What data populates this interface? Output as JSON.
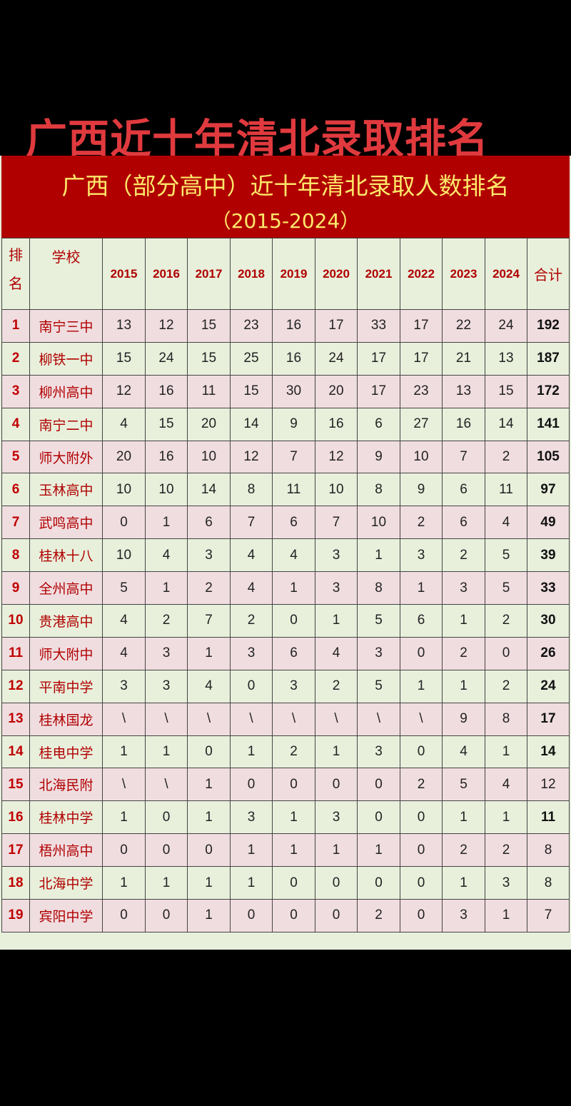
{
  "top_title": "广西近十年清北录取排名",
  "banner": {
    "line1": "广西（部分高中）近十年清北录取人数排名",
    "line2": "（2015-2024）"
  },
  "colors": {
    "banner_bg": "#b10000",
    "banner_text": "#fde86a",
    "top_title": "#e03a3e",
    "odd_row": "#f0dde0",
    "even_row": "#e8f0dc",
    "header_text": "#b00000"
  },
  "table": {
    "headers": {
      "rank_1": "排",
      "rank_2": "名",
      "school": "学校",
      "years": [
        "2015",
        "2016",
        "2017",
        "2018",
        "2019",
        "2020",
        "2021",
        "2022",
        "2023",
        "2024"
      ],
      "total": "合计"
    },
    "rows": [
      {
        "rank": "1",
        "school": "南宁三中",
        "values": [
          "13",
          "12",
          "15",
          "23",
          "16",
          "17",
          "33",
          "17",
          "22",
          "24"
        ],
        "total": "192",
        "bold": true
      },
      {
        "rank": "2",
        "school": "柳铁一中",
        "values": [
          "15",
          "24",
          "15",
          "25",
          "16",
          "24",
          "17",
          "17",
          "21",
          "13"
        ],
        "total": "187",
        "bold": true
      },
      {
        "rank": "3",
        "school": "柳州高中",
        "values": [
          "12",
          "16",
          "11",
          "15",
          "30",
          "20",
          "17",
          "23",
          "13",
          "15"
        ],
        "total": "172",
        "bold": true
      },
      {
        "rank": "4",
        "school": "南宁二中",
        "values": [
          "4",
          "15",
          "20",
          "14",
          "9",
          "16",
          "6",
          "27",
          "16",
          "14"
        ],
        "total": "141",
        "bold": true
      },
      {
        "rank": "5",
        "school": "师大附外",
        "values": [
          "20",
          "16",
          "10",
          "12",
          "7",
          "12",
          "9",
          "10",
          "7",
          "2"
        ],
        "total": "105",
        "bold": true
      },
      {
        "rank": "6",
        "school": "玉林高中",
        "values": [
          "10",
          "10",
          "14",
          "8",
          "11",
          "10",
          "8",
          "9",
          "6",
          "11"
        ],
        "total": "97",
        "bold": true
      },
      {
        "rank": "7",
        "school": "武鸣高中",
        "values": [
          "0",
          "1",
          "6",
          "7",
          "6",
          "7",
          "10",
          "2",
          "6",
          "4"
        ],
        "total": "49",
        "bold": true
      },
      {
        "rank": "8",
        "school": "桂林十八",
        "values": [
          "10",
          "4",
          "3",
          "4",
          "4",
          "3",
          "1",
          "3",
          "2",
          "5"
        ],
        "total": "39",
        "bold": true
      },
      {
        "rank": "9",
        "school": "全州高中",
        "values": [
          "5",
          "1",
          "2",
          "4",
          "1",
          "3",
          "8",
          "1",
          "3",
          "5"
        ],
        "total": "33",
        "bold": true
      },
      {
        "rank": "10",
        "school": "贵港高中",
        "values": [
          "4",
          "2",
          "7",
          "2",
          "0",
          "1",
          "5",
          "6",
          "1",
          "2"
        ],
        "total": "30",
        "bold": true
      },
      {
        "rank": "11",
        "school": "师大附中",
        "values": [
          "4",
          "3",
          "1",
          "3",
          "6",
          "4",
          "3",
          "0",
          "2",
          "0"
        ],
        "total": "26",
        "bold": true
      },
      {
        "rank": "12",
        "school": "平南中学",
        "values": [
          "3",
          "3",
          "4",
          "0",
          "3",
          "2",
          "5",
          "1",
          "1",
          "2"
        ],
        "total": "24",
        "bold": true
      },
      {
        "rank": "13",
        "school": "桂林国龙",
        "values": [
          "\\",
          "\\",
          "\\",
          "\\",
          "\\",
          "\\",
          "\\",
          "\\",
          "9",
          "8"
        ],
        "total": "17",
        "bold": true
      },
      {
        "rank": "14",
        "school": "桂电中学",
        "values": [
          "1",
          "1",
          "0",
          "1",
          "2",
          "1",
          "3",
          "0",
          "4",
          "1"
        ],
        "total": "14",
        "bold": true
      },
      {
        "rank": "15",
        "school": "北海民附",
        "values": [
          "\\",
          "\\",
          "1",
          "0",
          "0",
          "0",
          "0",
          "2",
          "5",
          "4"
        ],
        "total": "12",
        "bold": false
      },
      {
        "rank": "16",
        "school": "桂林中学",
        "values": [
          "1",
          "0",
          "1",
          "3",
          "1",
          "3",
          "0",
          "0",
          "1",
          "1"
        ],
        "total": "11",
        "bold": true
      },
      {
        "rank": "17",
        "school": "梧州高中",
        "values": [
          "0",
          "0",
          "0",
          "1",
          "1",
          "1",
          "1",
          "0",
          "2",
          "2"
        ],
        "total": "8",
        "bold": false
      },
      {
        "rank": "18",
        "school": "北海中学",
        "values": [
          "1",
          "1",
          "1",
          "1",
          "0",
          "0",
          "0",
          "0",
          "1",
          "3"
        ],
        "total": "8",
        "bold": false
      },
      {
        "rank": "19",
        "school": "宾阳中学",
        "values": [
          "0",
          "0",
          "1",
          "0",
          "0",
          "0",
          "2",
          "0",
          "3",
          "1"
        ],
        "total": "7",
        "bold": false
      }
    ]
  }
}
